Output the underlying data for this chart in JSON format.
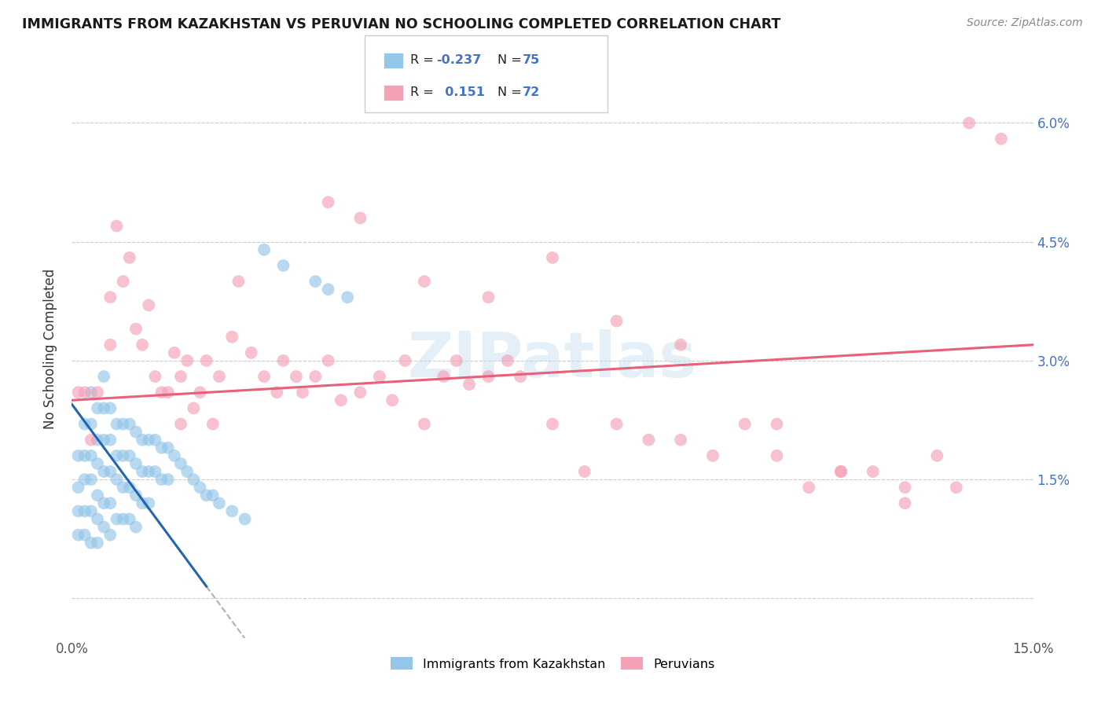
{
  "title": "IMMIGRANTS FROM KAZAKHSTAN VS PERUVIAN NO SCHOOLING COMPLETED CORRELATION CHART",
  "source": "Source: ZipAtlas.com",
  "ylabel": "No Schooling Completed",
  "legend_label_blue": "Immigrants from Kazakhstan",
  "legend_label_pink": "Peruvians",
  "r_blue": -0.237,
  "n_blue": 75,
  "r_pink": 0.151,
  "n_pink": 72,
  "xlim": [
    0.0,
    0.15
  ],
  "ylim": [
    -0.005,
    0.068
  ],
  "yticks": [
    0.0,
    0.015,
    0.03,
    0.045,
    0.06
  ],
  "ytick_labels_right": [
    "",
    "1.5%",
    "3.0%",
    "4.5%",
    "6.0%"
  ],
  "ytick_labels_left": [
    "",
    "",
    "",
    "",
    ""
  ],
  "color_blue": "#93c6e8",
  "color_pink": "#f4a0b5",
  "line_blue": "#2166ac",
  "line_pink": "#e8607a",
  "watermark": "ZIPatlas",
  "blue_line_x0": 0.0,
  "blue_line_y0": 0.0245,
  "blue_line_x1": 0.021,
  "blue_line_y1": 0.0015,
  "pink_line_x0": 0.0,
  "pink_line_y0": 0.025,
  "pink_line_x1": 0.15,
  "pink_line_y1": 0.032,
  "blue_x": [
    0.001,
    0.001,
    0.001,
    0.001,
    0.002,
    0.002,
    0.002,
    0.002,
    0.002,
    0.003,
    0.003,
    0.003,
    0.003,
    0.003,
    0.003,
    0.004,
    0.004,
    0.004,
    0.004,
    0.004,
    0.004,
    0.005,
    0.005,
    0.005,
    0.005,
    0.005,
    0.005,
    0.006,
    0.006,
    0.006,
    0.006,
    0.006,
    0.007,
    0.007,
    0.007,
    0.007,
    0.008,
    0.008,
    0.008,
    0.008,
    0.009,
    0.009,
    0.009,
    0.009,
    0.01,
    0.01,
    0.01,
    0.01,
    0.011,
    0.011,
    0.011,
    0.012,
    0.012,
    0.012,
    0.013,
    0.013,
    0.014,
    0.014,
    0.015,
    0.015,
    0.016,
    0.017,
    0.018,
    0.019,
    0.02,
    0.021,
    0.022,
    0.023,
    0.025,
    0.027,
    0.03,
    0.033,
    0.038,
    0.04,
    0.043
  ],
  "blue_y": [
    0.018,
    0.014,
    0.011,
    0.008,
    0.022,
    0.018,
    0.015,
    0.011,
    0.008,
    0.026,
    0.022,
    0.018,
    0.015,
    0.011,
    0.007,
    0.024,
    0.02,
    0.017,
    0.013,
    0.01,
    0.007,
    0.028,
    0.024,
    0.02,
    0.016,
    0.012,
    0.009,
    0.024,
    0.02,
    0.016,
    0.012,
    0.008,
    0.022,
    0.018,
    0.015,
    0.01,
    0.022,
    0.018,
    0.014,
    0.01,
    0.022,
    0.018,
    0.014,
    0.01,
    0.021,
    0.017,
    0.013,
    0.009,
    0.02,
    0.016,
    0.012,
    0.02,
    0.016,
    0.012,
    0.02,
    0.016,
    0.019,
    0.015,
    0.019,
    0.015,
    0.018,
    0.017,
    0.016,
    0.015,
    0.014,
    0.013,
    0.013,
    0.012,
    0.011,
    0.01,
    0.044,
    0.042,
    0.04,
    0.039,
    0.038
  ],
  "pink_x": [
    0.001,
    0.002,
    0.003,
    0.004,
    0.006,
    0.006,
    0.007,
    0.008,
    0.009,
    0.01,
    0.011,
    0.012,
    0.013,
    0.014,
    0.015,
    0.016,
    0.017,
    0.017,
    0.018,
    0.019,
    0.02,
    0.021,
    0.022,
    0.023,
    0.025,
    0.026,
    0.028,
    0.03,
    0.032,
    0.033,
    0.035,
    0.036,
    0.038,
    0.04,
    0.042,
    0.045,
    0.048,
    0.05,
    0.052,
    0.055,
    0.058,
    0.06,
    0.062,
    0.065,
    0.068,
    0.07,
    0.075,
    0.08,
    0.085,
    0.09,
    0.095,
    0.1,
    0.105,
    0.11,
    0.115,
    0.12,
    0.125,
    0.13,
    0.135,
    0.138,
    0.04,
    0.045,
    0.055,
    0.065,
    0.075,
    0.085,
    0.095,
    0.11,
    0.12,
    0.13,
    0.14,
    0.145
  ],
  "pink_y": [
    0.026,
    0.026,
    0.02,
    0.026,
    0.038,
    0.032,
    0.047,
    0.04,
    0.043,
    0.034,
    0.032,
    0.037,
    0.028,
    0.026,
    0.026,
    0.031,
    0.028,
    0.022,
    0.03,
    0.024,
    0.026,
    0.03,
    0.022,
    0.028,
    0.033,
    0.04,
    0.031,
    0.028,
    0.026,
    0.03,
    0.028,
    0.026,
    0.028,
    0.03,
    0.025,
    0.026,
    0.028,
    0.025,
    0.03,
    0.022,
    0.028,
    0.03,
    0.027,
    0.028,
    0.03,
    0.028,
    0.022,
    0.016,
    0.022,
    0.02,
    0.02,
    0.018,
    0.022,
    0.018,
    0.014,
    0.016,
    0.016,
    0.014,
    0.018,
    0.014,
    0.05,
    0.048,
    0.04,
    0.038,
    0.043,
    0.035,
    0.032,
    0.022,
    0.016,
    0.012,
    0.06,
    0.058
  ]
}
